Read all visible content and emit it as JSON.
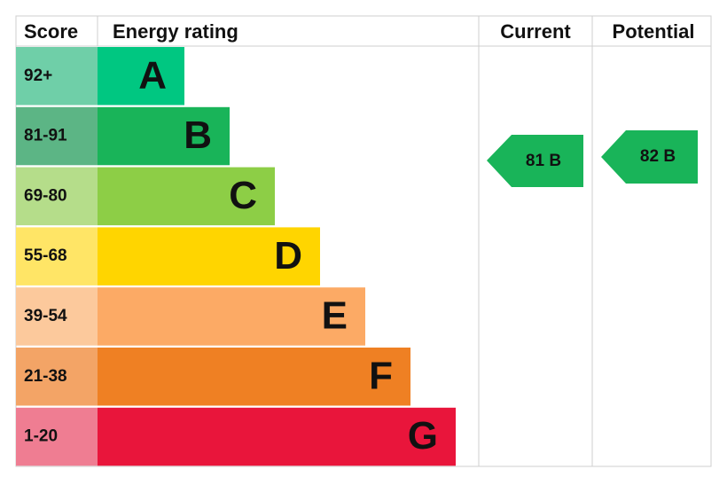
{
  "header": {
    "score": "Score",
    "rating": "Energy rating",
    "current": "Current",
    "potential": "Potential"
  },
  "bands": [
    {
      "score": "92+",
      "letter": "A"
    },
    {
      "score": "81-91",
      "letter": "B"
    },
    {
      "score": "69-80",
      "letter": "C"
    },
    {
      "score": "55-68",
      "letter": "D"
    },
    {
      "score": "39-54",
      "letter": "E"
    },
    {
      "score": "21-38",
      "letter": "F"
    },
    {
      "score": "1-20",
      "letter": "G"
    }
  ],
  "current": "81 B",
  "potential": "82 B"
}
